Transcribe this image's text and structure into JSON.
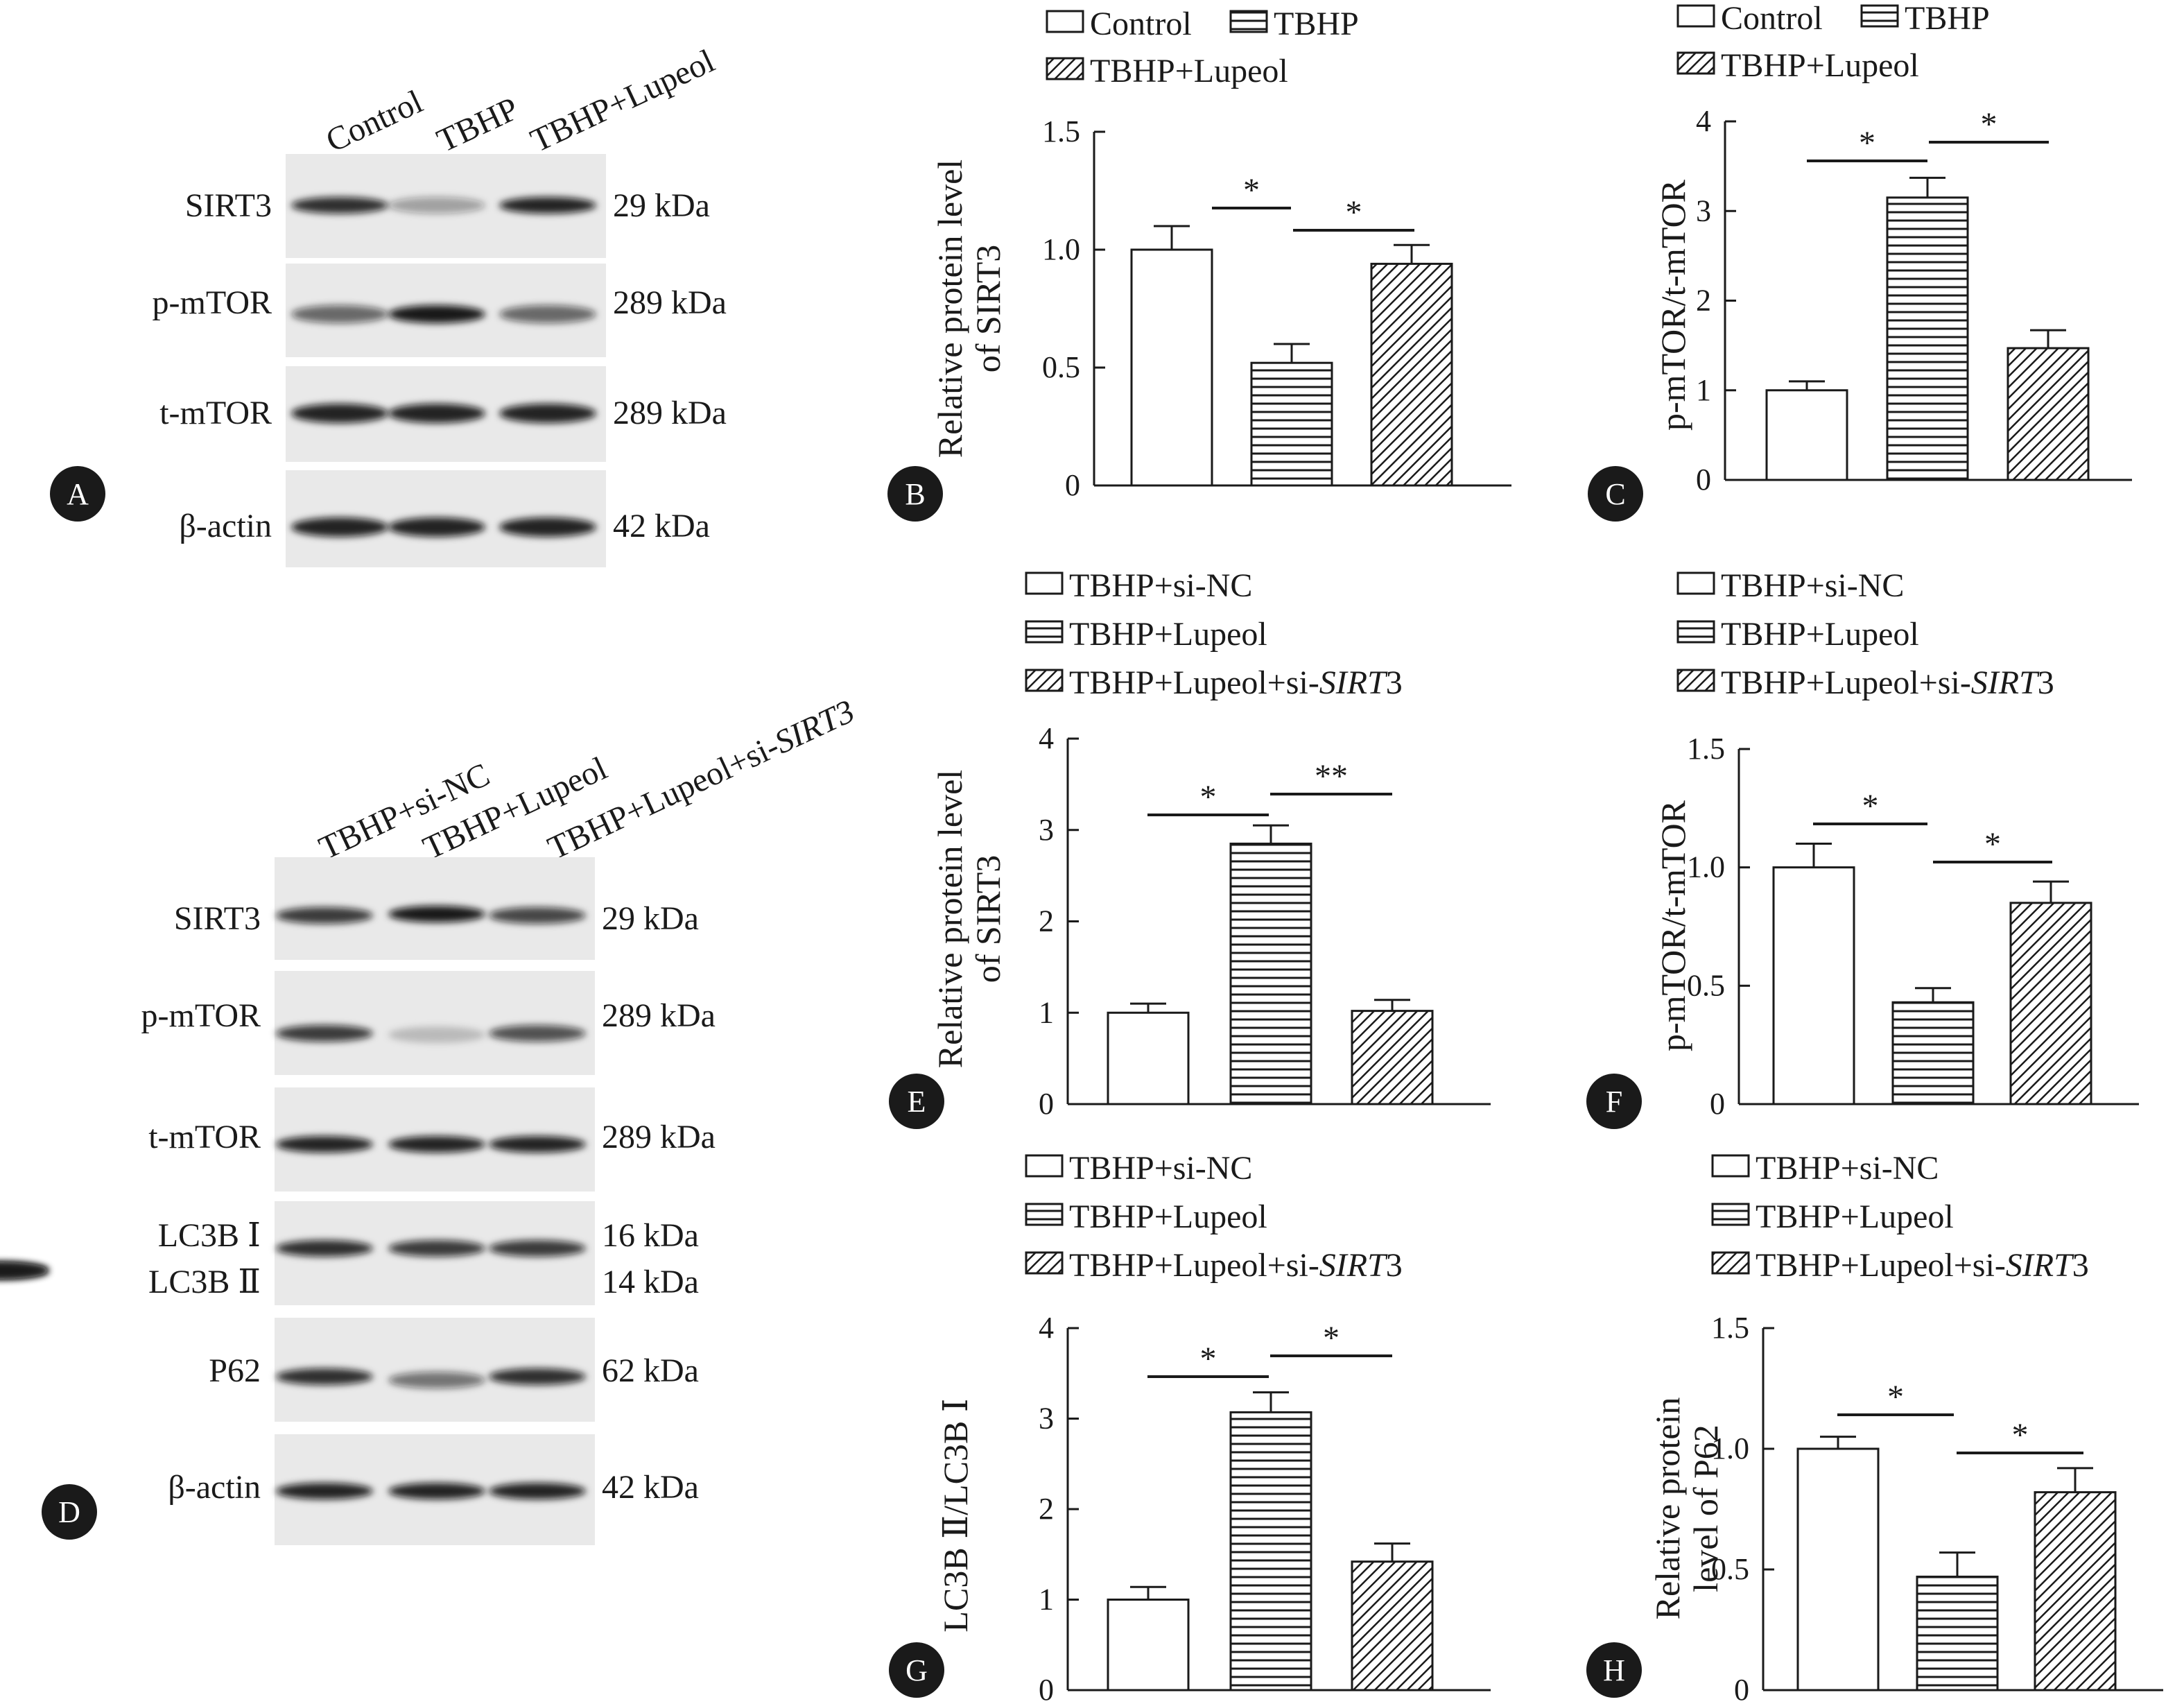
{
  "panels": [
    {
      "letter": "A"
    },
    {
      "letter": "B"
    },
    {
      "letter": "C"
    },
    {
      "letter": "D"
    },
    {
      "letter": "E"
    },
    {
      "letter": "F"
    },
    {
      "letter": "G"
    },
    {
      "letter": "H"
    }
  ],
  "blot_A": {
    "lanes": [
      "Control",
      "TBHP",
      "TBHP+Lupeol"
    ],
    "rows": [
      {
        "name": "SIRT3",
        "size": "29 kDa",
        "intensity": [
          0.85,
          0.35,
          0.9
        ]
      },
      {
        "name": "p-mTOR",
        "size": "289 kDa",
        "intensity": [
          0.6,
          0.95,
          0.6
        ]
      },
      {
        "name": "t-mTOR",
        "size": "289 kDa",
        "intensity": [
          0.9,
          0.9,
          0.9
        ]
      },
      {
        "name": "β-actin",
        "size": "42 kDa",
        "intensity": [
          0.9,
          0.9,
          0.9
        ]
      }
    ]
  },
  "blot_D": {
    "lanes": [
      "TBHP+si-NC",
      "TBHP+Lupeol",
      "TBHP+Lupeol+si-"
    ],
    "lane_gene": "SIRT3",
    "rows": [
      {
        "name": "SIRT3",
        "size": "29 kDa"
      },
      {
        "name": "p-mTOR",
        "size": "289 kDa"
      },
      {
        "name": "t-mTOR",
        "size": "289 kDa"
      },
      {
        "name": "LC3B Ⅰ",
        "size": "16 kDa"
      },
      {
        "name": "LC3B Ⅱ",
        "size": "14 kDa"
      },
      {
        "name": "P62",
        "size": "62 kDa"
      },
      {
        "name": "β-actin",
        "size": "42 kDa"
      }
    ]
  },
  "legend_abc": [
    "Control",
    "TBHP",
    "TBHP+Lupeol"
  ],
  "legend_def": [
    "TBHP+si-NC",
    "TBHP+Lupeol",
    "TBHP+Lupeol+si-"
  ],
  "legend_gene": "SIRT",
  "legend_gene_suffix": "3",
  "chart_data": [
    {
      "panel": "B",
      "type": "bar",
      "categories": [
        "Control",
        "TBHP",
        "TBHP+Lupeol"
      ],
      "values": [
        1.0,
        0.52,
        0.94
      ],
      "errors": [
        0.1,
        0.08,
        0.08
      ],
      "ylabel": [
        "Relative protein level",
        "of SIRT3"
      ],
      "ylim": [
        0,
        1.5
      ],
      "yticks": [
        "0",
        "0.5",
        "1.0",
        "1.5"
      ],
      "significance": [
        "*",
        "*"
      ]
    },
    {
      "panel": "C",
      "type": "bar",
      "categories": [
        "Control",
        "TBHP",
        "TBHP+Lupeol"
      ],
      "values": [
        1.0,
        3.15,
        1.47
      ],
      "errors": [
        0.1,
        0.22,
        0.2
      ],
      "ylabel": [
        "p-mTOR/t-mTOR"
      ],
      "ylim": [
        0,
        4
      ],
      "yticks": [
        "0",
        "1",
        "2",
        "3",
        "4"
      ],
      "significance": [
        "*",
        "*"
      ]
    },
    {
      "panel": "E",
      "type": "bar",
      "categories": [
        "TBHP+si-NC",
        "TBHP+Lupeol",
        "TBHP+Lupeol+si-SIRT3"
      ],
      "values": [
        1.0,
        2.85,
        1.02
      ],
      "errors": [
        0.1,
        0.2,
        0.12
      ],
      "ylabel": [
        "Relative protein level",
        "of SIRT3"
      ],
      "ylim": [
        0,
        4
      ],
      "yticks": [
        "0",
        "1",
        "2",
        "3",
        "4"
      ],
      "significance": [
        "*",
        "**"
      ]
    },
    {
      "panel": "F",
      "type": "bar",
      "categories": [
        "TBHP+si-NC",
        "TBHP+Lupeol",
        "TBHP+Lupeol+si-SIRT3"
      ],
      "values": [
        1.0,
        0.43,
        0.85
      ],
      "errors": [
        0.1,
        0.06,
        0.09
      ],
      "ylabel": [
        "p-mTOR/t-mTOR"
      ],
      "ylim": [
        0,
        1.5
      ],
      "yticks": [
        "0",
        "0.5",
        "1.0",
        "1.5"
      ],
      "significance": [
        "*",
        "*"
      ]
    },
    {
      "panel": "G",
      "type": "bar",
      "categories": [
        "TBHP+si-NC",
        "TBHP+Lupeol",
        "TBHP+Lupeol+si-SIRT3"
      ],
      "values": [
        1.0,
        3.07,
        1.42
      ],
      "errors": [
        0.14,
        0.22,
        0.2
      ],
      "ylabel": [
        "LC3B Ⅱ/LC3B Ⅰ"
      ],
      "ylim": [
        0,
        4
      ],
      "yticks": [
        "0",
        "1",
        "2",
        "3",
        "4"
      ],
      "significance": [
        "*",
        "*"
      ]
    },
    {
      "panel": "H",
      "type": "bar",
      "categories": [
        "TBHP+si-NC",
        "TBHP+Lupeol",
        "TBHP+Lupeol+si-SIRT3"
      ],
      "values": [
        1.0,
        0.47,
        0.82
      ],
      "errors": [
        0.05,
        0.1,
        0.1
      ],
      "ylabel": [
        "Relative protein",
        "level of P62"
      ],
      "ylim": [
        0,
        1.5
      ],
      "yticks": [
        "0",
        "0.5",
        "1.0",
        "1.5"
      ],
      "significance": [
        "*",
        "*"
      ]
    }
  ]
}
